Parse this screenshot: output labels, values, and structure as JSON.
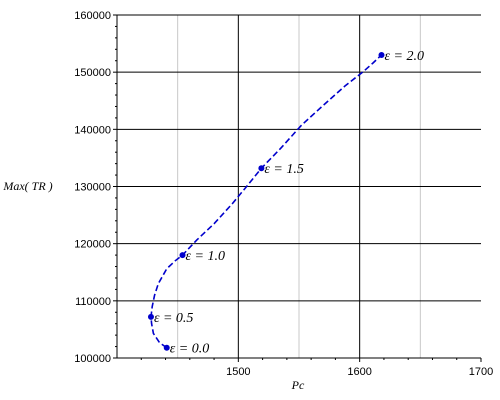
{
  "chart_data": {
    "type": "line",
    "title": "",
    "xlabel": "Pc",
    "ylabel": "Max( TR )",
    "xlim": [
      1400,
      1700
    ],
    "ylim": [
      100000,
      160000
    ],
    "grid": true,
    "x_ticks": [
      1500,
      1600,
      1700
    ],
    "x_tick_labels": [
      "1500",
      "1600",
      "1700"
    ],
    "y_ticks": [
      100000,
      110000,
      120000,
      130000,
      140000,
      150000,
      160000
    ],
    "y_tick_labels": [
      "100000",
      "110000",
      "120000",
      "130000",
      "140000",
      "150000",
      "160000"
    ],
    "line_color": "#0000cc",
    "line_style": "dashed",
    "curve": [
      {
        "x": 1441,
        "y": 101800
      },
      {
        "x": 1435,
        "y": 102700
      },
      {
        "x": 1430,
        "y": 104300
      },
      {
        "x": 1428.5,
        "y": 106000
      },
      {
        "x": 1428,
        "y": 107200
      },
      {
        "x": 1429,
        "y": 109000
      },
      {
        "x": 1431,
        "y": 111000
      },
      {
        "x": 1434,
        "y": 113000
      },
      {
        "x": 1441,
        "y": 115600
      },
      {
        "x": 1448,
        "y": 117000
      },
      {
        "x": 1454,
        "y": 118000
      },
      {
        "x": 1466,
        "y": 120700
      },
      {
        "x": 1480,
        "y": 123500
      },
      {
        "x": 1495,
        "y": 127000
      },
      {
        "x": 1508,
        "y": 130300
      },
      {
        "x": 1519,
        "y": 133200
      },
      {
        "x": 1535,
        "y": 136700
      },
      {
        "x": 1552,
        "y": 140700
      },
      {
        "x": 1570,
        "y": 144200
      },
      {
        "x": 1588,
        "y": 147600
      },
      {
        "x": 1603,
        "y": 150100
      },
      {
        "x": 1611,
        "y": 151600
      },
      {
        "x": 1618,
        "y": 153000
      }
    ],
    "points": [
      {
        "label": "ε = 0.0",
        "x": 1441,
        "y": 101800
      },
      {
        "label": "ε = 0.5",
        "x": 1428,
        "y": 107200
      },
      {
        "label": "ε = 1.0",
        "x": 1454,
        "y": 118000
      },
      {
        "label": "ε = 1.5",
        "x": 1519,
        "y": 133200
      },
      {
        "label": "ε = 2.0",
        "x": 1618,
        "y": 153000
      }
    ]
  }
}
